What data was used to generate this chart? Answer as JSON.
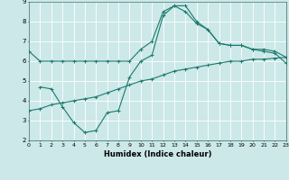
{
  "title": "",
  "xlabel": "Humidex (Indice chaleur)",
  "xlim": [
    0,
    23
  ],
  "ylim": [
    2,
    9
  ],
  "yticks": [
    2,
    3,
    4,
    5,
    6,
    7,
    8,
    9
  ],
  "xticks": [
    0,
    1,
    2,
    3,
    4,
    5,
    6,
    7,
    8,
    9,
    10,
    11,
    12,
    13,
    14,
    15,
    16,
    17,
    18,
    19,
    20,
    21,
    22,
    23
  ],
  "bg_color": "#cce8e8",
  "line_color": "#1a7a6e",
  "grid_color": "#ffffff",
  "line1_x": [
    0,
    1,
    2,
    3,
    4,
    5,
    6,
    7,
    8,
    9,
    10,
    11,
    12,
    13,
    14,
    15,
    16,
    17,
    18,
    19,
    20,
    21,
    22,
    23
  ],
  "line1_y": [
    6.5,
    6.0,
    6.0,
    6.0,
    6.0,
    6.0,
    6.0,
    6.0,
    6.0,
    6.0,
    6.6,
    7.0,
    8.5,
    8.8,
    8.8,
    8.0,
    7.6,
    6.9,
    6.8,
    6.8,
    6.6,
    6.6,
    6.5,
    6.2
  ],
  "line2_x": [
    0,
    1,
    2,
    3,
    4,
    5,
    6,
    7,
    8,
    9,
    10,
    11,
    12,
    13,
    14,
    15,
    16,
    17,
    18,
    19,
    20,
    21,
    22,
    23
  ],
  "line2_y": [
    3.5,
    3.6,
    3.8,
    3.9,
    4.0,
    4.1,
    4.2,
    4.4,
    4.6,
    4.8,
    5.0,
    5.1,
    5.3,
    5.5,
    5.6,
    5.7,
    5.8,
    5.9,
    6.0,
    6.0,
    6.1,
    6.1,
    6.15,
    6.2
  ],
  "line3_x": [
    1,
    2,
    3,
    4,
    5,
    6,
    7,
    8,
    9,
    10,
    11,
    12,
    13,
    14,
    15,
    16,
    17,
    18,
    19,
    20,
    21,
    22,
    23
  ],
  "line3_y": [
    4.7,
    4.6,
    3.7,
    2.9,
    2.4,
    2.5,
    3.4,
    3.5,
    5.2,
    6.0,
    6.3,
    8.3,
    8.8,
    8.5,
    7.9,
    7.6,
    6.9,
    6.8,
    6.8,
    6.6,
    6.5,
    6.4,
    5.9
  ]
}
